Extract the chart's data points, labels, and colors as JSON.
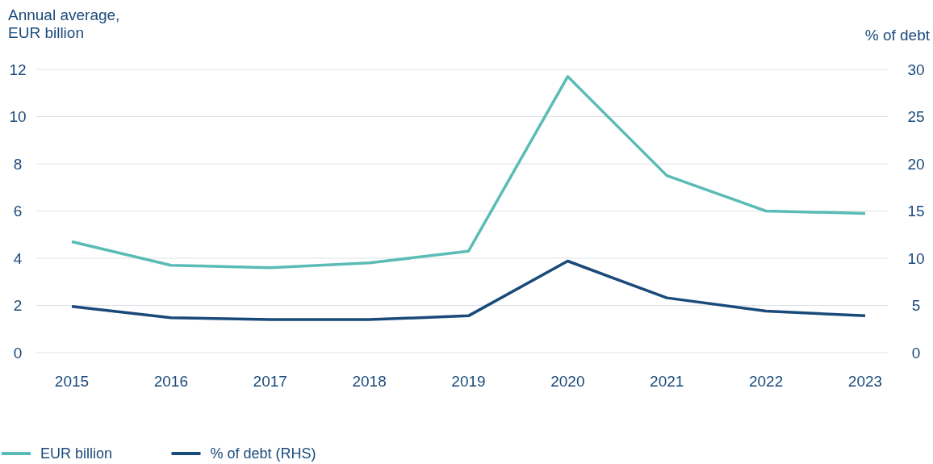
{
  "chart_data": {
    "type": "line",
    "ylabel": "Annual average,\nEUR billion",
    "y2label": "% of debt",
    "categories": [
      "2015",
      "2016",
      "2017",
      "2018",
      "2019",
      "2020",
      "2021",
      "2022",
      "2023"
    ],
    "series": [
      {
        "name": "EUR billion",
        "color": "#5bbcb5",
        "values": [
          4.7,
          3.7,
          3.6,
          3.8,
          4.3,
          11.7,
          7.5,
          6.0,
          5.9
        ]
      },
      {
        "name": "% of debt (RHS)",
        "color": "#1a4a7a",
        "axis": "y2",
        "values": [
          4.9,
          3.7,
          3.5,
          3.5,
          3.9,
          9.7,
          5.8,
          4.4,
          3.9
        ]
      }
    ],
    "ylim": [
      0,
      12
    ],
    "yticks": [
      0,
      2,
      4,
      6,
      8,
      10,
      12
    ],
    "y2lim": [
      0,
      30
    ],
    "y2ticks": [
      0,
      5,
      10,
      15,
      20,
      25,
      30
    ],
    "grid": "y",
    "legend": "bottom left",
    "marker": "none",
    "line_style": "solid"
  }
}
